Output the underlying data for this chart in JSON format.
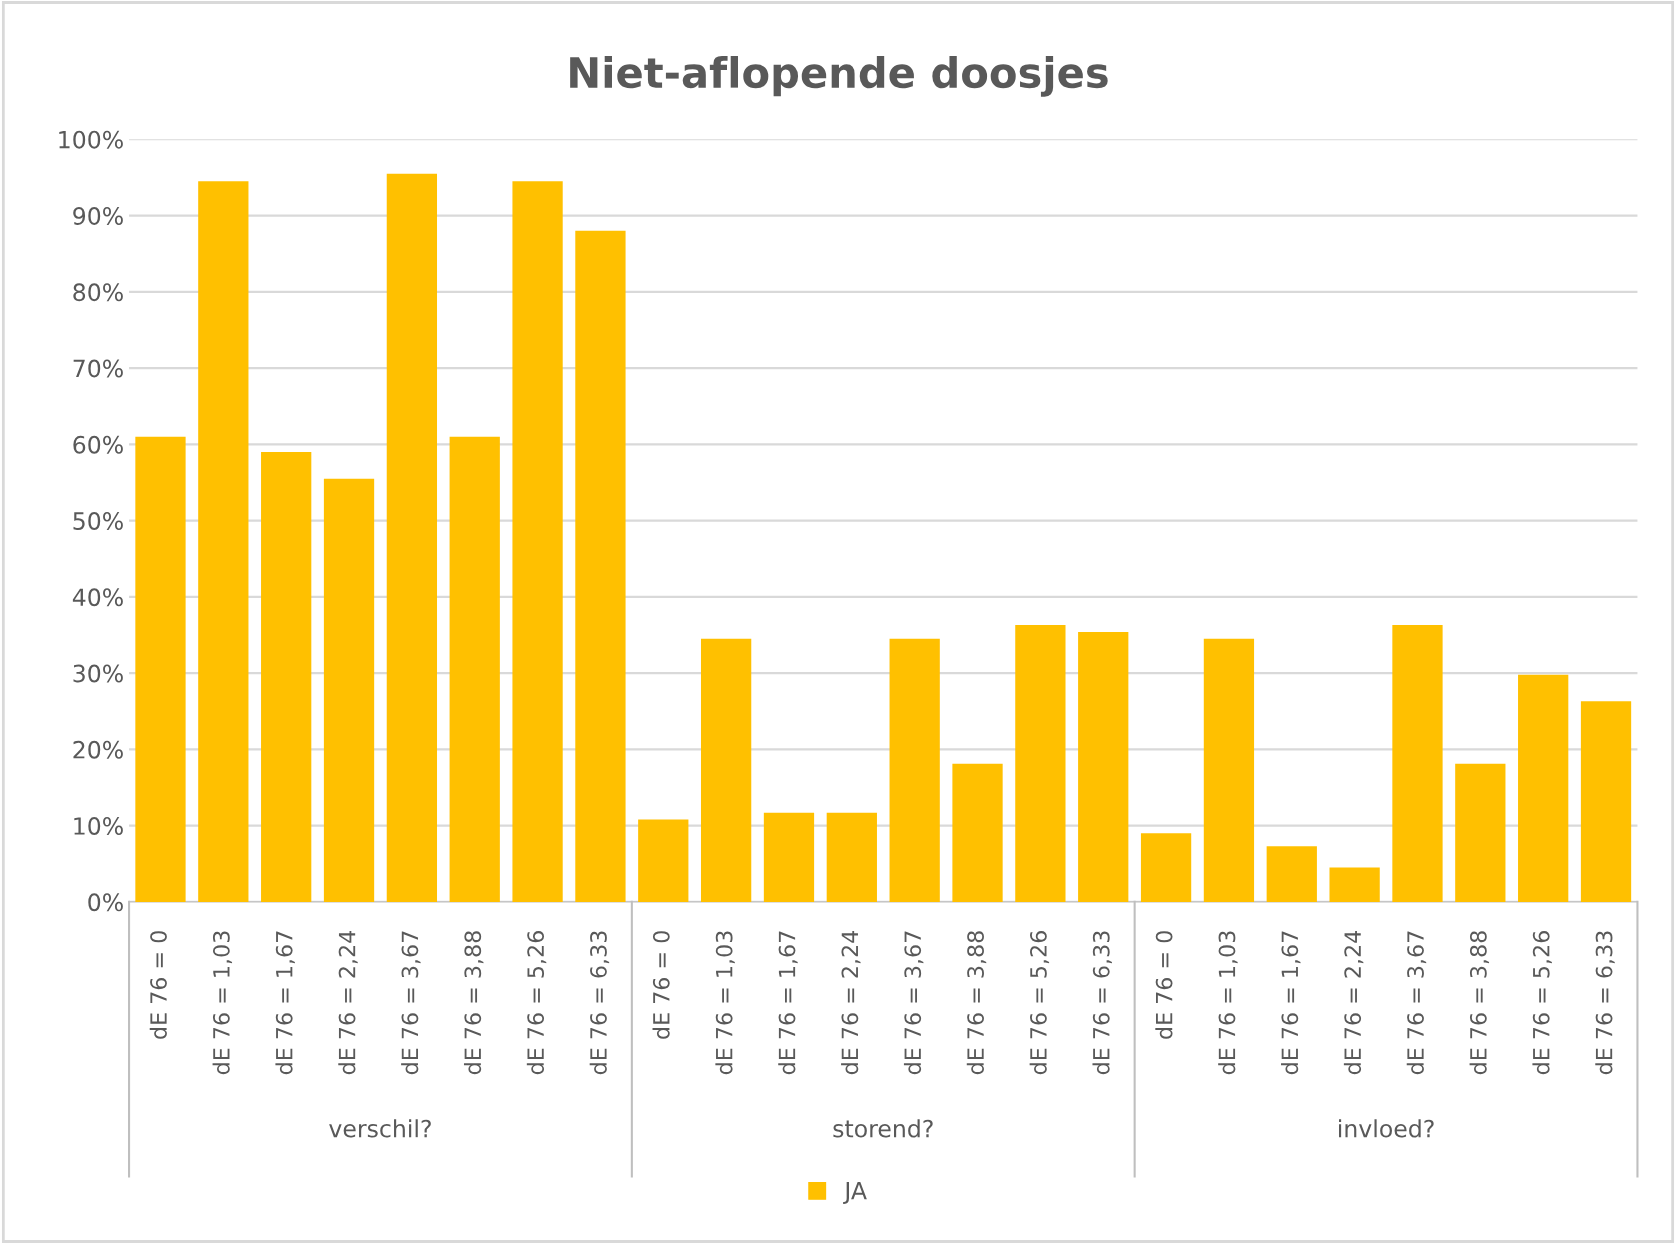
{
  "chart_data": {
    "type": "bar",
    "title": "Niet-aflopende doosjes",
    "categories": [
      "dE 76 = 0",
      "dE 76 = 1,03",
      "dE 76 = 1,67",
      "dE 76 = 2,24",
      "dE 76 = 3,67",
      "dE 76 = 3,88",
      "dE 76 = 5,26",
      "dE 76 = 6,33",
      "dE 76 = 0",
      "dE 76 = 1,03",
      "dE 76 = 1,67",
      "dE 76 = 2,24",
      "dE 76 = 3,67",
      "dE 76 = 3,88",
      "dE 76 = 5,26",
      "dE 76 = 6,33",
      "dE 76 = 0",
      "dE 76 = 1,03",
      "dE 76 = 1,67",
      "dE 76 = 2,24",
      "dE 76 = 3,67",
      "dE 76 = 3,88",
      "dE 76 = 5,26",
      "dE 76 = 6,33"
    ],
    "series": [
      {
        "name": "JA",
        "color": "#ffc000",
        "values": [
          61,
          94.5,
          59,
          55.5,
          95.5,
          61,
          94.5,
          88,
          10.8,
          34.5,
          11.7,
          11.7,
          34.5,
          18.1,
          36.3,
          35.4,
          9,
          34.5,
          7.3,
          4.5,
          36.3,
          18.1,
          29.8,
          26.3
        ]
      }
    ],
    "annotations": [
      "verschil?",
      "storend?",
      "invloed?"
    ],
    "ylim": [
      0,
      100
    ],
    "yticks": [
      {
        "value": 0,
        "label": "0%"
      },
      {
        "value": 10,
        "label": "10%"
      },
      {
        "value": 20,
        "label": "20%"
      },
      {
        "value": 30,
        "label": "30%"
      },
      {
        "value": 40,
        "label": "40%"
      },
      {
        "value": 50,
        "label": "50%"
      },
      {
        "value": 60,
        "label": "60%"
      },
      {
        "value": 70,
        "label": "70%"
      },
      {
        "value": 80,
        "label": "80%"
      },
      {
        "value": 90,
        "label": "90%"
      },
      {
        "value": 100,
        "label": "100%"
      }
    ],
    "grid": "y",
    "legend": "bottom"
  }
}
